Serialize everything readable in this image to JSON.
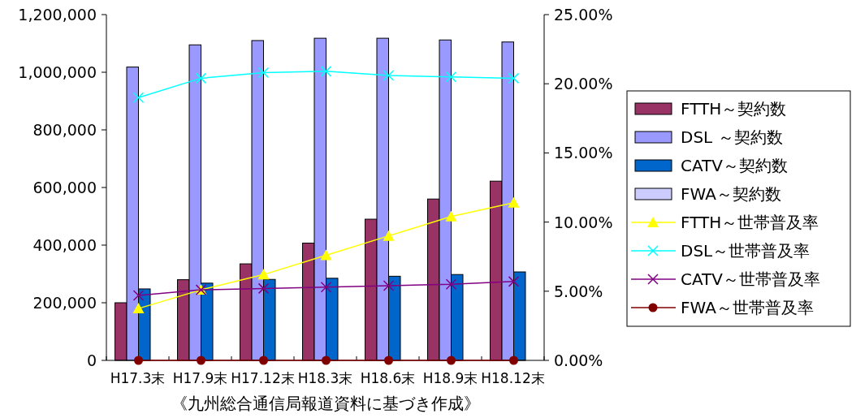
{
  "chart_data": {
    "type": "bar",
    "categories": [
      "H17.3末",
      "H17.9末",
      "H17.12末",
      "H18.3末",
      "H18.6末",
      "H18.9末",
      "H18.12末"
    ],
    "series": [
      {
        "name": "FTTH～契約数",
        "color": "#993366",
        "values": [
          200000,
          280000,
          335000,
          407000,
          490000,
          560000,
          622000
        ]
      },
      {
        "name": "DSL ～契約数",
        "color": "#9999ff",
        "values": [
          1018000,
          1095000,
          1110000,
          1118000,
          1118000,
          1112000,
          1105000
        ]
      },
      {
        "name": "CATV～契約数",
        "color": "#0066cc",
        "values": [
          248000,
          268000,
          281000,
          285000,
          292000,
          298000,
          307000
        ]
      },
      {
        "name": "FWA～契約数",
        "color": "#ccccff",
        "values": [
          0,
          0,
          0,
          0,
          0,
          0,
          0
        ]
      },
      {
        "name": "FTTH～世帯普及率",
        "type": "line",
        "axis": "y2",
        "marker": "triangle",
        "color": "#ffff00",
        "values": [
          3.75,
          5.1,
          6.2,
          7.6,
          9.0,
          10.4,
          11.4
        ]
      },
      {
        "name": "DSL～世帯普及率",
        "type": "line",
        "axis": "y2",
        "marker": "cross",
        "color": "#00ffff",
        "values": [
          19.0,
          20.4,
          20.8,
          20.9,
          20.6,
          20.5,
          20.4
        ]
      },
      {
        "name": "CATV～世帯普及率",
        "type": "line",
        "axis": "y2",
        "marker": "cross",
        "color": "#800080",
        "values": [
          4.7,
          5.1,
          5.2,
          5.3,
          5.4,
          5.5,
          5.7
        ]
      },
      {
        "name": "FWA～世帯普及率",
        "type": "line",
        "axis": "y2",
        "marker": "circle",
        "color": "#800000",
        "values": [
          0,
          0,
          0,
          0,
          0,
          0,
          0
        ]
      }
    ],
    "ylim": [
      0,
      1200000
    ],
    "yticks": [
      0,
      {
        "value": 200000,
        "label": "200,000"
      },
      {
        "value": 400000,
        "label": "400,000"
      },
      {
        "value": 600000,
        "label": "600,000"
      },
      {
        "value": 800000,
        "label": "800,000"
      },
      {
        "value": 1000000,
        "label": "1,000,000"
      },
      {
        "value": 1200000,
        "label": "1,200,000"
      }
    ],
    "y2lim": [
      0,
      25
    ],
    "y2ticks": [
      {
        "value": 0,
        "label": "0.00%"
      },
      {
        "value": 5,
        "label": "5.00%"
      },
      {
        "value": 10,
        "label": "10.00%"
      },
      {
        "value": 15,
        "label": "15.00%"
      },
      {
        "value": 20,
        "label": "20.00%"
      },
      {
        "value": 25,
        "label": "25.00%"
      }
    ],
    "legend": "right",
    "line_style": "solid",
    "annotations": [
      "《九州総合通信局報道資料に基づき作成》"
    ]
  }
}
